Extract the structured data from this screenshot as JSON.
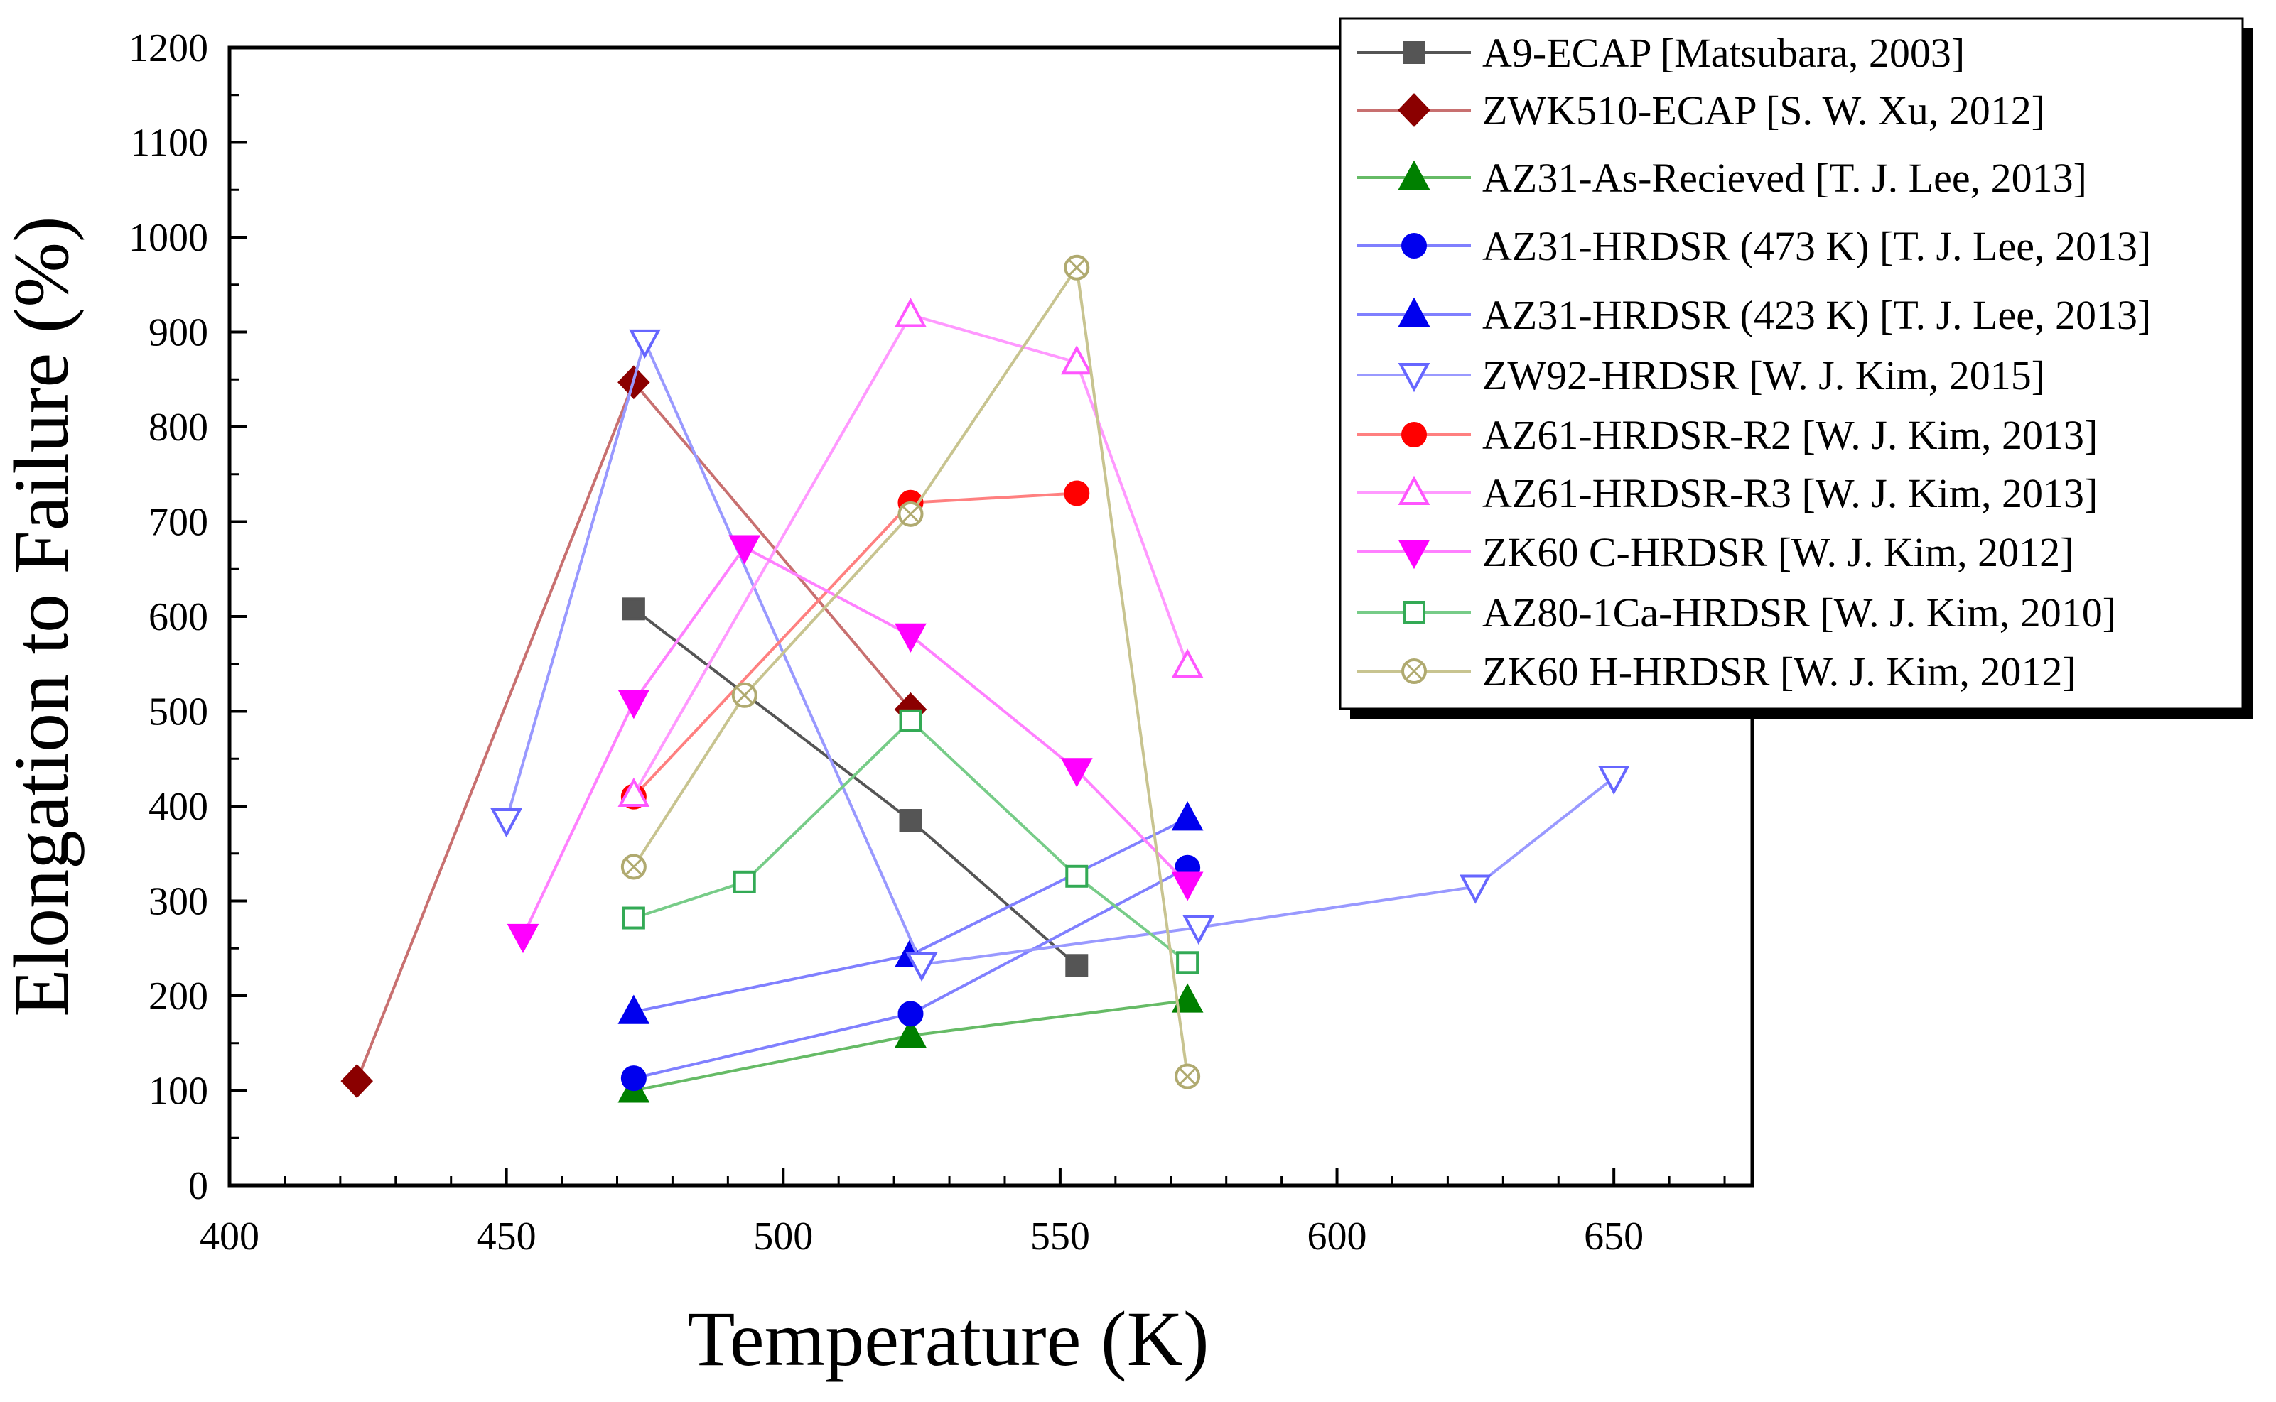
{
  "chart_data": {
    "type": "line",
    "title": "",
    "xlabel": "Temperature (K)",
    "ylabel": "Elongation to Failure (%)",
    "xlim": [
      400,
      675
    ],
    "ylim": [
      0,
      1200
    ],
    "x_ticks": [
      400,
      450,
      500,
      550,
      600,
      650
    ],
    "y_ticks": [
      0,
      100,
      200,
      300,
      400,
      500,
      600,
      700,
      800,
      900,
      1000,
      1100,
      1200
    ],
    "grid": false,
    "legend_position": "top-right",
    "series": [
      {
        "name": "A9-ECAP [Matsubara, 2003]",
        "color": "#555555",
        "marker": "square",
        "fill": true,
        "x": [
          473,
          523,
          553
        ],
        "y": [
          608,
          385,
          232
        ]
      },
      {
        "name": "ZWK510-ECAP [S. W. Xu, 2012]",
        "color": "#8b0000",
        "line_color": "#c87070",
        "marker": "diamond",
        "fill": true,
        "x": [
          423,
          473,
          523
        ],
        "y": [
          110,
          847,
          502
        ]
      },
      {
        "name": "AZ31-As-Recieved [T. J. Lee, 2013]",
        "color": "#008000",
        "line_color": "#66bb66",
        "marker": "triangle-up",
        "fill": true,
        "x": [
          473,
          523,
          573
        ],
        "y": [
          100,
          158,
          195
        ]
      },
      {
        "name": "AZ31-HRDSR (473 K) [T. J. Lee, 2013]",
        "color": "#0000ee",
        "line_color": "#8080ff",
        "marker": "circle",
        "fill": true,
        "x": [
          473,
          523,
          573
        ],
        "y": [
          113,
          181,
          335
        ]
      },
      {
        "name": "AZ31-HRDSR (423 K) [T. J. Lee, 2013]",
        "color": "#0000ee",
        "line_color": "#8080ff",
        "marker": "triangle-up",
        "fill": true,
        "x": [
          473,
          523,
          573
        ],
        "y": [
          183,
          243,
          387
        ]
      },
      {
        "name": "ZW92-HRDSR [W. J. Kim, 2015]",
        "color": "#6666ff",
        "line_color": "#9999ff",
        "marker": "triangle-down",
        "fill": false,
        "x": [
          450,
          475,
          525,
          575,
          625,
          650
        ],
        "y": [
          385,
          890,
          233,
          272,
          315,
          430
        ]
      },
      {
        "name": "AZ61-HRDSR-R2 [W. J. Kim, 2013]",
        "color": "#ff0000",
        "line_color": "#ff8080",
        "marker": "circle",
        "fill": true,
        "x": [
          473,
          523,
          553
        ],
        "y": [
          410,
          720,
          730
        ]
      },
      {
        "name": "AZ61-HRDSR-R3 [W. J. Kim, 2013]",
        "color": "#ff55ff",
        "line_color": "#ff99ff",
        "marker": "triangle-up",
        "fill": false,
        "x": [
          473,
          523,
          553,
          573
        ],
        "y": [
          412,
          918,
          868,
          548
        ]
      },
      {
        "name": "ZK60 C-HRDSR [W. J. Kim, 2012]",
        "color": "#ff00ff",
        "line_color": "#ff80ff",
        "marker": "triangle-down",
        "fill": true,
        "x": [
          453,
          473,
          493,
          523,
          553,
          573
        ],
        "y": [
          263,
          510,
          673,
          580,
          438,
          318
        ]
      },
      {
        "name": "AZ80-1Ca-HRDSR [W. J. Kim, 2010]",
        "color": "#33aa55",
        "line_color": "#77cc88",
        "marker": "square",
        "fill": false,
        "x": [
          473,
          493,
          523,
          553,
          573
        ],
        "y": [
          282,
          320,
          490,
          326,
          235
        ]
      },
      {
        "name": "ZK60 H-HRDSR [W. J. Kim, 2012]",
        "color": "#b0aa70",
        "line_color": "#c8c490",
        "marker": "circle-x",
        "fill": false,
        "x": [
          473,
          493,
          523,
          553,
          573
        ],
        "y": [
          336,
          517,
          708,
          968,
          115
        ]
      }
    ]
  }
}
